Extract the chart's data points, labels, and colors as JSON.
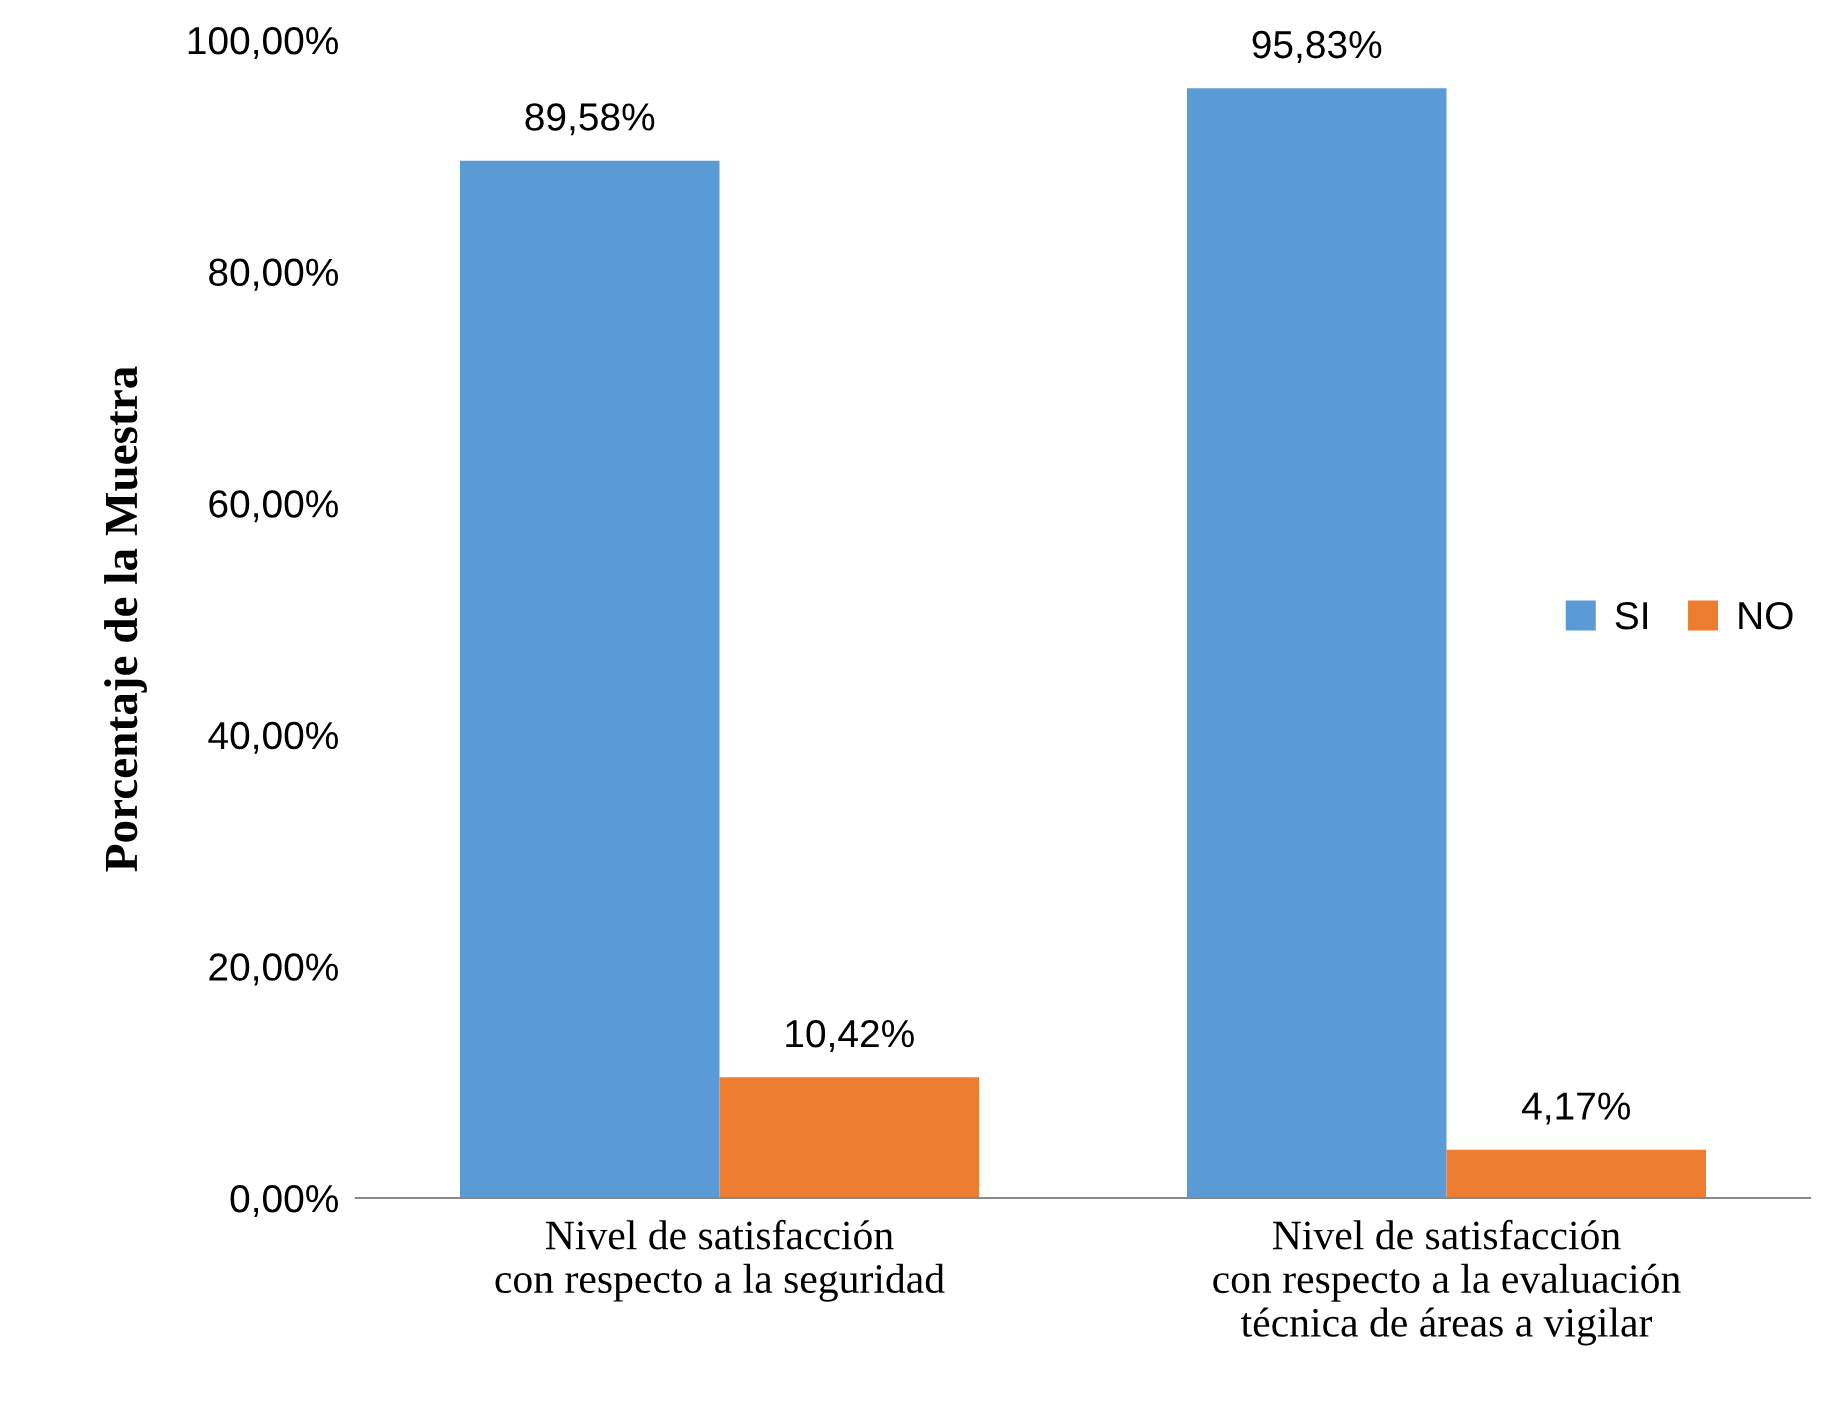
{
  "chart_data": {
    "type": "bar",
    "ylabel": "Porcentaje de la Muestra",
    "categories": [
      "Nivel de satisfacción\ncon respecto a la seguridad",
      "Nivel de satisfacción\ncon respecto a la evaluación\ntécnica de áreas a vigilar"
    ],
    "series": [
      {
        "name": "SI",
        "color": "#5b9bd5",
        "values": [
          89.58,
          95.83
        ],
        "value_labels": [
          "89,58%",
          "95,83%"
        ]
      },
      {
        "name": "NO",
        "color": "#ed7d31",
        "values": [
          10.42,
          4.17
        ],
        "value_labels": [
          "10,42%",
          "4,17%"
        ]
      }
    ],
    "ylim": [
      0,
      100
    ],
    "yticks": [
      {
        "value": 0,
        "label": "0,00%"
      },
      {
        "value": 20,
        "label": "20,00%"
      },
      {
        "value": 40,
        "label": "40,00%"
      },
      {
        "value": 60,
        "label": "60,00%"
      },
      {
        "value": 80,
        "label": "80,00%"
      },
      {
        "value": 100,
        "label": "100,00%"
      }
    ],
    "grid": false,
    "legend": "right"
  }
}
